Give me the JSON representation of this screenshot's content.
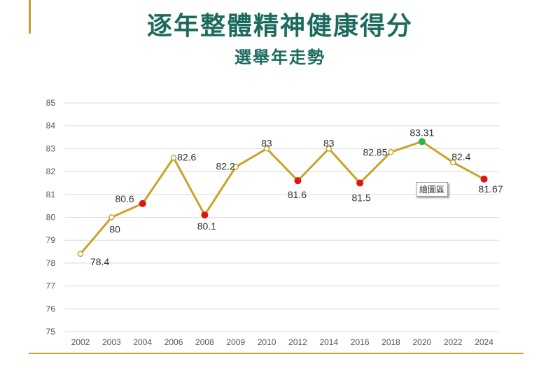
{
  "title": "逐年整體精神健康得分",
  "subtitle": "選舉年走勢",
  "tooltip": "繪圖區",
  "chart_data": {
    "type": "line",
    "categories": [
      "2002",
      "2003",
      "2004",
      "2006",
      "2008",
      "2009",
      "2010",
      "2012",
      "2014",
      "2016",
      "2018",
      "2020",
      "2022",
      "2024"
    ],
    "series": [
      {
        "values": [
          78.4,
          80,
          80.6,
          82.6,
          80.1,
          82.2,
          83,
          81.6,
          83,
          81.5,
          82.85,
          83.31,
          82.4,
          81.67
        ],
        "labels": [
          "78.4",
          "80",
          "80.6",
          "82.6",
          "80.1",
          "82.2",
          "83",
          "81.6",
          "83",
          "81.5",
          "82.85",
          "83.31",
          "82.4",
          "81.67"
        ],
        "marker_types": [
          "open",
          "open",
          "red",
          "open",
          "red",
          "open",
          "open",
          "red",
          "open",
          "red",
          "open",
          "green",
          "open",
          "red"
        ]
      }
    ],
    "ylim": [
      75,
      85
    ],
    "yticks": [
      "75",
      "76",
      "77",
      "78",
      "79",
      "80",
      "81",
      "82",
      "83",
      "84",
      "85"
    ],
    "grid": true,
    "colors": {
      "line": "#c8a428",
      "open_fill": "#ffffff",
      "red": "#e01414",
      "green": "#2bb34a",
      "grid": "#d9d9d9"
    }
  }
}
